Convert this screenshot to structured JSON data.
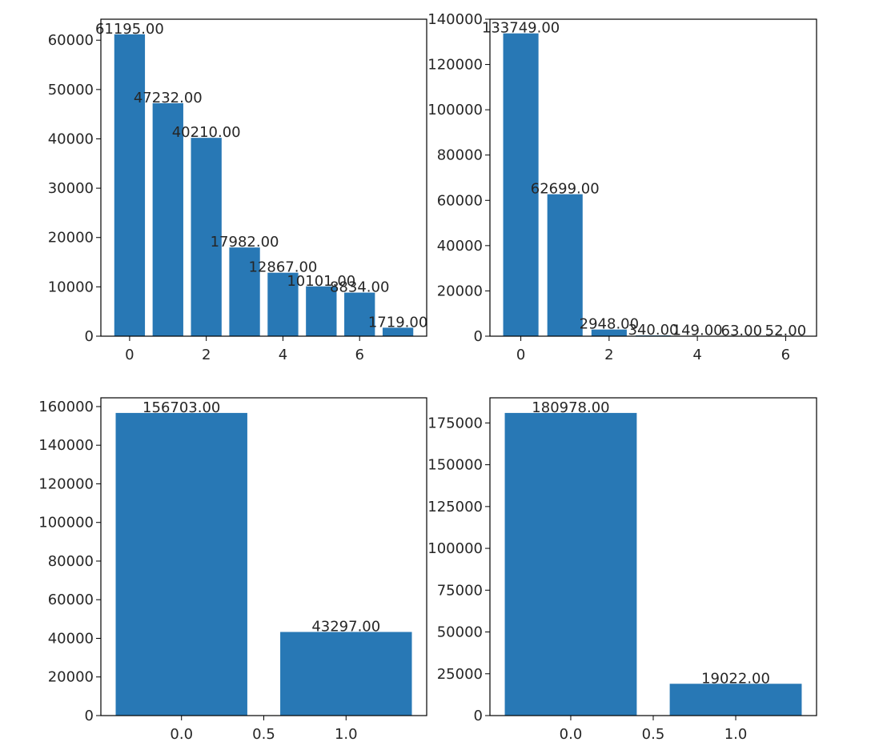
{
  "figure": {
    "background": "#ffffff",
    "bar_color": "#2878b5"
  },
  "chart_data": [
    {
      "type": "bar",
      "position": "top-left",
      "x": [
        0,
        1,
        2,
        3,
        4,
        5,
        6,
        7
      ],
      "values": [
        61195,
        47232,
        40210,
        17982,
        12867,
        10101,
        8834,
        1719
      ],
      "data_labels": [
        "61195.00",
        "47232.00",
        "40210.00",
        "17982.00",
        "12867.00",
        "10101.00",
        "8834.00",
        "1719.00"
      ],
      "bar_width": 0.8,
      "xlim": [
        -0.75,
        7.75
      ],
      "ylim": [
        0,
        64255
      ],
      "xticks": [
        0,
        2,
        4,
        6
      ],
      "xtick_labels": [
        "0",
        "2",
        "4",
        "6"
      ],
      "yticks": [
        0,
        10000,
        20000,
        30000,
        40000,
        50000,
        60000
      ],
      "ytick_labels": [
        "0",
        "10000",
        "20000",
        "30000",
        "40000",
        "50000",
        "60000"
      ],
      "grid": false
    },
    {
      "type": "bar",
      "position": "top-right",
      "x": [
        0,
        1,
        2,
        3,
        4,
        5,
        6
      ],
      "values": [
        133749,
        62699,
        2948,
        340,
        149,
        63,
        52
      ],
      "data_labels": [
        "133749.00",
        "62699.00",
        "2948.00",
        "340.00",
        "149.00",
        "63.00",
        "52.00"
      ],
      "bar_width": 0.8,
      "xlim": [
        -0.7,
        6.7
      ],
      "ylim": [
        0,
        140000
      ],
      "xticks": [
        0,
        2,
        4,
        6
      ],
      "xtick_labels": [
        "0",
        "2",
        "4",
        "6"
      ],
      "yticks": [
        0,
        20000,
        40000,
        60000,
        80000,
        100000,
        120000,
        140000
      ],
      "ytick_labels": [
        "0",
        "20000",
        "40000",
        "60000",
        "80000",
        "100000",
        "120000",
        "140000"
      ],
      "grid": false
    },
    {
      "type": "bar",
      "position": "bottom-left",
      "x": [
        0,
        1
      ],
      "values": [
        156703,
        43297
      ],
      "data_labels": [
        "156703.00",
        "43297.00"
      ],
      "bar_width": 0.8,
      "xlim": [
        -0.49,
        1.49
      ],
      "ylim": [
        0,
        164538
      ],
      "xticks": [
        0.0,
        0.5,
        1.0
      ],
      "xtick_labels": [
        "0.0",
        "0.5",
        "1.0"
      ],
      "yticks": [
        0,
        20000,
        40000,
        60000,
        80000,
        100000,
        120000,
        140000,
        160000
      ],
      "ytick_labels": [
        "0",
        "20000",
        "40000",
        "60000",
        "80000",
        "100000",
        "120000",
        "140000",
        "160000"
      ],
      "grid": false
    },
    {
      "type": "bar",
      "position": "bottom-right",
      "x": [
        0,
        1
      ],
      "values": [
        180978,
        19022
      ],
      "data_labels": [
        "180978.00",
        "19022.00"
      ],
      "bar_width": 0.8,
      "xlim": [
        -0.49,
        1.49
      ],
      "ylim": [
        0,
        190027
      ],
      "xticks": [
        0.0,
        0.5,
        1.0
      ],
      "xtick_labels": [
        "0.0",
        "0.5",
        "1.0"
      ],
      "yticks": [
        0,
        25000,
        50000,
        75000,
        100000,
        125000,
        150000,
        175000
      ],
      "ytick_labels": [
        "0",
        "25000",
        "50000",
        "75000",
        "100000",
        "125000",
        "150000",
        "175000"
      ],
      "grid": false
    }
  ]
}
